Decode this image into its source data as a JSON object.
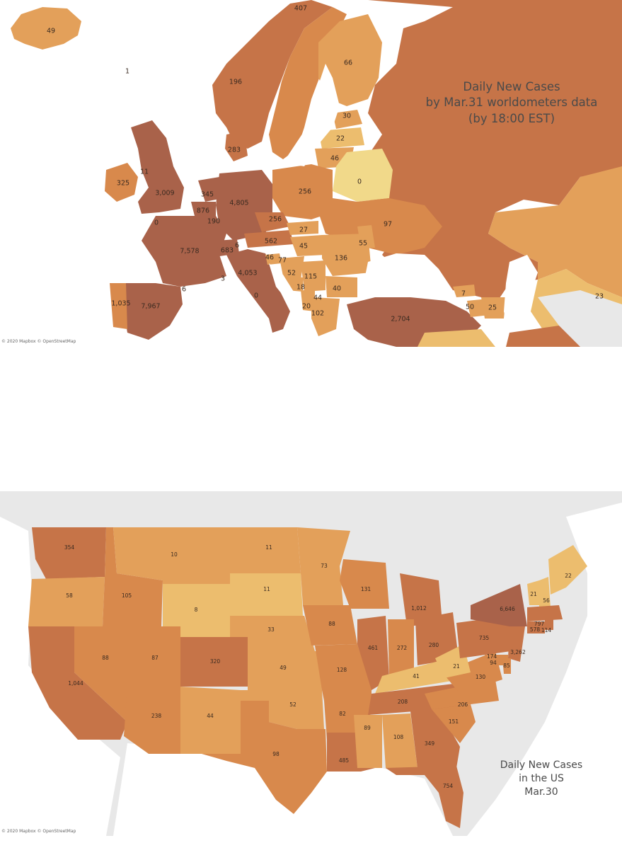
{
  "europe": {
    "title_lines": [
      "Daily New Cases",
      "by Mar.31 worldometers data",
      "(by 18:00 EST)"
    ],
    "attribution": "© 2020 Mapbox © OpenStreetMap",
    "labels": [
      "49",
      "407",
      "1",
      "66",
      "196",
      "30",
      "22",
      "283",
      "46",
      "11",
      "325",
      "0",
      "3,009",
      "256",
      "345",
      "4,805",
      "876",
      "190",
      "256",
      "97",
      "0",
      "27",
      "562",
      "55",
      "6",
      "45",
      "7,578",
      "683",
      "77",
      "136",
      "46",
      "52",
      "4,053",
      "115",
      "3",
      "18",
      "44",
      "40",
      "0",
      "6",
      "7",
      "23",
      "1,035",
      "7,967",
      "20",
      "102",
      "50",
      "25",
      "2,704"
    ]
  },
  "us": {
    "title_lines": [
      "Daily New Cases",
      "in the US",
      "Mar.30"
    ],
    "attribution": "© 2020 Mapbox © OpenStreetMap",
    "labels": [
      "354",
      "10",
      "11",
      "73",
      "22",
      "58",
      "105",
      "11",
      "131",
      "21",
      "56",
      "8",
      "1,012",
      "6,646",
      "33",
      "88",
      "797",
      "578",
      "114",
      "88",
      "87",
      "320",
      "461",
      "272",
      "280",
      "735",
      "3,262",
      "174",
      "94",
      "85",
      "49",
      "128",
      "21",
      "41",
      "1,044",
      "130",
      "52",
      "82",
      "208",
      "206",
      "238",
      "44",
      "151",
      "89",
      "108",
      "349",
      "98",
      "485",
      "754"
    ]
  },
  "colors": {
    "very_high": "#a9624a",
    "high": "#c67448",
    "mid": "#d8894c",
    "mid_low": "#e3a05a",
    "low": "#ecbd6e",
    "very_low": "#f1d98a",
    "water": "#ffffff",
    "land_other": "#e8e8e8"
  }
}
